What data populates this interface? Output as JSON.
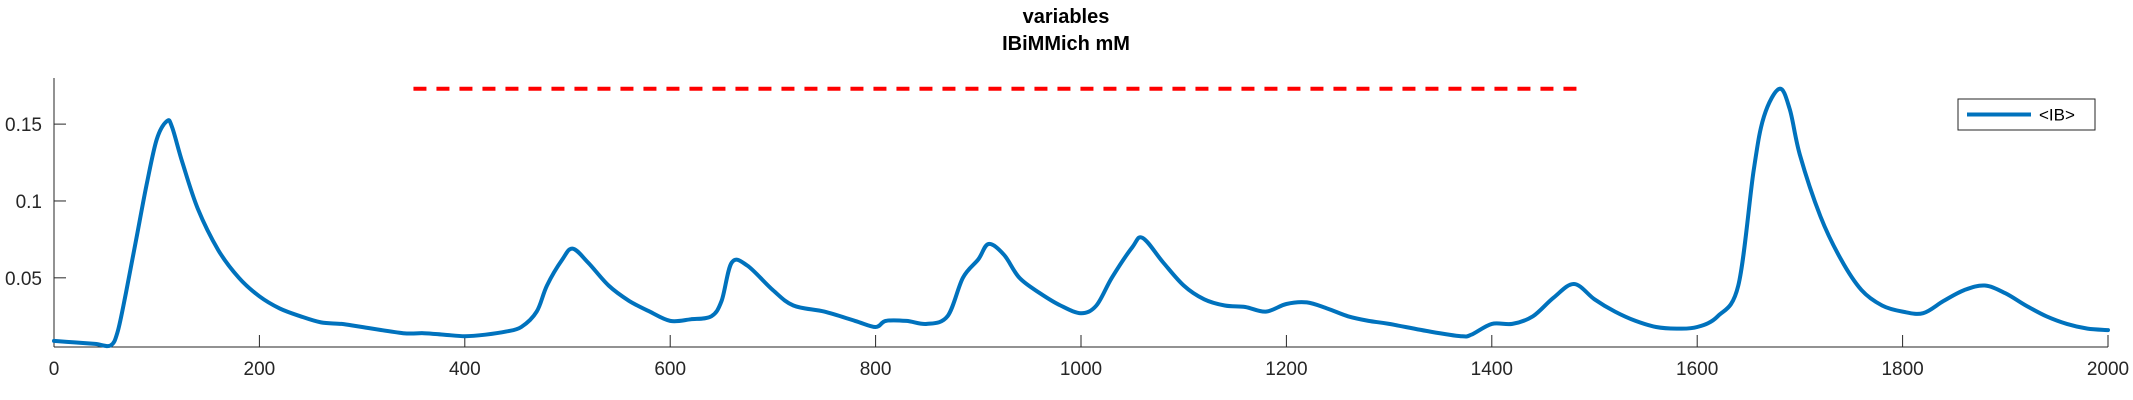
{
  "chart_data": {
    "type": "line",
    "title": [
      "variables",
      "IBiMMich mM"
    ],
    "xlabel": "",
    "ylabel": "",
    "xlim": [
      0,
      2000
    ],
    "ylim": [
      0.005,
      0.18
    ],
    "xticks": [
      0,
      200,
      400,
      600,
      800,
      1000,
      1200,
      1400,
      1600,
      1800,
      2000
    ],
    "yticks": [
      0.05,
      0.1,
      0.15
    ],
    "ytick_labels": [
      "0.05",
      "0.1",
      "0.15"
    ],
    "grid": false,
    "legend": {
      "location": "top-right",
      "entries": [
        "<IB>"
      ]
    },
    "colors": {
      "series": "#0072BD",
      "reference": "#FF0000"
    },
    "reference_line": {
      "style": "dashed",
      "y": 0.173,
      "x_start": 350,
      "x_end": 1490
    },
    "series": [
      {
        "name": "<IB>",
        "x": [
          0,
          20,
          40,
          55,
          62,
          70,
          80,
          90,
          100,
          110,
          115,
          125,
          140,
          160,
          180,
          200,
          220,
          240,
          260,
          280,
          300,
          340,
          360,
          380,
          400,
          420,
          440,
          455,
          470,
          480,
          495,
          505,
          520,
          540,
          560,
          580,
          600,
          620,
          640,
          650,
          660,
          675,
          700,
          720,
          750,
          780,
          800,
          810,
          830,
          850,
          870,
          885,
          900,
          910,
          925,
          940,
          960,
          980,
          1000,
          1015,
          1030,
          1050,
          1060,
          1080,
          1100,
          1120,
          1140,
          1160,
          1180,
          1200,
          1220,
          1240,
          1260,
          1280,
          1300,
          1340,
          1370,
          1380,
          1400,
          1420,
          1440,
          1460,
          1480,
          1500,
          1520,
          1540,
          1560,
          1580,
          1600,
          1620,
          1640,
          1655,
          1665,
          1680,
          1690,
          1700,
          1720,
          1740,
          1760,
          1780,
          1800,
          1820,
          1840,
          1860,
          1880,
          1900,
          1920,
          1940,
          1960,
          1980,
          2000
        ],
        "y": [
          0.009,
          0.008,
          0.007,
          0.006,
          0.015,
          0.04,
          0.075,
          0.11,
          0.14,
          0.152,
          0.148,
          0.125,
          0.095,
          0.068,
          0.05,
          0.038,
          0.03,
          0.025,
          0.021,
          0.02,
          0.018,
          0.014,
          0.014,
          0.013,
          0.012,
          0.013,
          0.015,
          0.018,
          0.028,
          0.045,
          0.062,
          0.069,
          0.06,
          0.045,
          0.035,
          0.028,
          0.022,
          0.023,
          0.025,
          0.035,
          0.06,
          0.058,
          0.042,
          0.032,
          0.028,
          0.022,
          0.018,
          0.022,
          0.022,
          0.02,
          0.025,
          0.05,
          0.062,
          0.072,
          0.065,
          0.05,
          0.04,
          0.032,
          0.027,
          0.032,
          0.05,
          0.07,
          0.076,
          0.06,
          0.045,
          0.036,
          0.032,
          0.031,
          0.028,
          0.033,
          0.034,
          0.03,
          0.025,
          0.022,
          0.02,
          0.015,
          0.012,
          0.013,
          0.02,
          0.02,
          0.025,
          0.037,
          0.046,
          0.036,
          0.028,
          0.022,
          0.018,
          0.017,
          0.018,
          0.025,
          0.045,
          0.12,
          0.155,
          0.173,
          0.16,
          0.13,
          0.09,
          0.062,
          0.042,
          0.032,
          0.028,
          0.027,
          0.035,
          0.042,
          0.045,
          0.04,
          0.032,
          0.025,
          0.02,
          0.017,
          0.016
        ]
      }
    ]
  }
}
